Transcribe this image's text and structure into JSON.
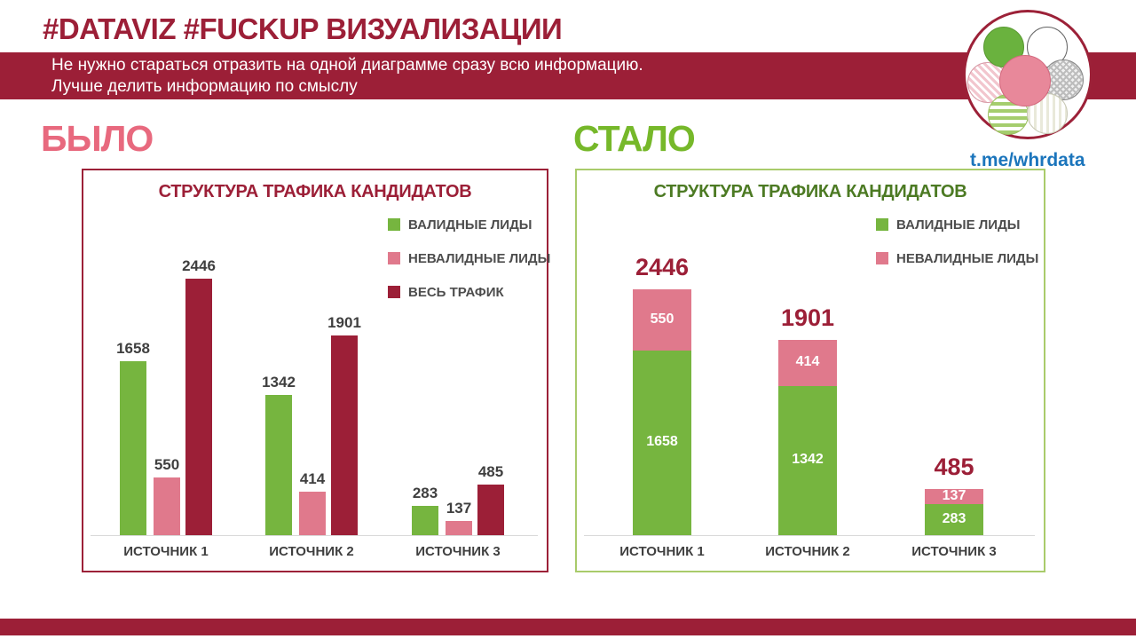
{
  "header": {
    "title": "#DATAVIZ #FUCKUP ВИЗУАЛИЗАЦИИ",
    "subtitle_line1": "Не нужно стараться отразить на одной диаграмме сразу всю информацию.",
    "subtitle_line2": "Лучше делить информацию по смыслу",
    "link": "t.me/whrdata"
  },
  "labels": {
    "before": "БЫЛО",
    "after": "СТАЛО"
  },
  "colors": {
    "maroon": "#9C1F37",
    "green": "#76B53F",
    "pink": "#E0798C",
    "before_heading": "#E8697E",
    "after_heading": "#76B82A",
    "after_title_green": "#4C7A23",
    "text_gray": "#404040",
    "link_blue": "#1B75BC",
    "after_border_green": "#A9CB6B"
  },
  "chart_data": [
    {
      "id": "before",
      "type": "bar",
      "stacked": false,
      "title": "СТРУКТУРА ТРАФИКА КАНДИДАТОВ",
      "categories": [
        "ИСТОЧНИК 1",
        "ИСТОЧНИК 2",
        "ИСТОЧНИК 3"
      ],
      "series": [
        {
          "name": "ВАЛИДНЫЕ ЛИДЫ",
          "color": "#76B53F",
          "values": [
            1658,
            1342,
            283
          ]
        },
        {
          "name": "НЕВАЛИДНЫЕ ЛИДЫ",
          "color": "#E0798C",
          "values": [
            550,
            414,
            137
          ]
        },
        {
          "name": "ВЕСЬ ТРАФИК",
          "color": "#9C1F37",
          "values": [
            2446,
            1901,
            485
          ]
        }
      ],
      "legend_position": "top-right",
      "grid": false,
      "ylim": [
        0,
        2600
      ]
    },
    {
      "id": "after",
      "type": "bar",
      "stacked": true,
      "title": "СТРУКТУРА ТРАФИКА КАНДИДАТОВ",
      "categories": [
        "ИСТОЧНИК 1",
        "ИСТОЧНИК 2",
        "ИСТОЧНИК 3"
      ],
      "series": [
        {
          "name": "ВАЛИДНЫЕ ЛИДЫ",
          "color": "#76B53F",
          "values": [
            1658,
            1342,
            283
          ]
        },
        {
          "name": "НЕВАЛИДНЫЕ ЛИДЫ",
          "color": "#E0798C",
          "values": [
            550,
            414,
            137
          ]
        }
      ],
      "totals": [
        2446,
        1901,
        485
      ],
      "legend_position": "top-right",
      "grid": false,
      "ylim": [
        0,
        2600
      ]
    }
  ]
}
